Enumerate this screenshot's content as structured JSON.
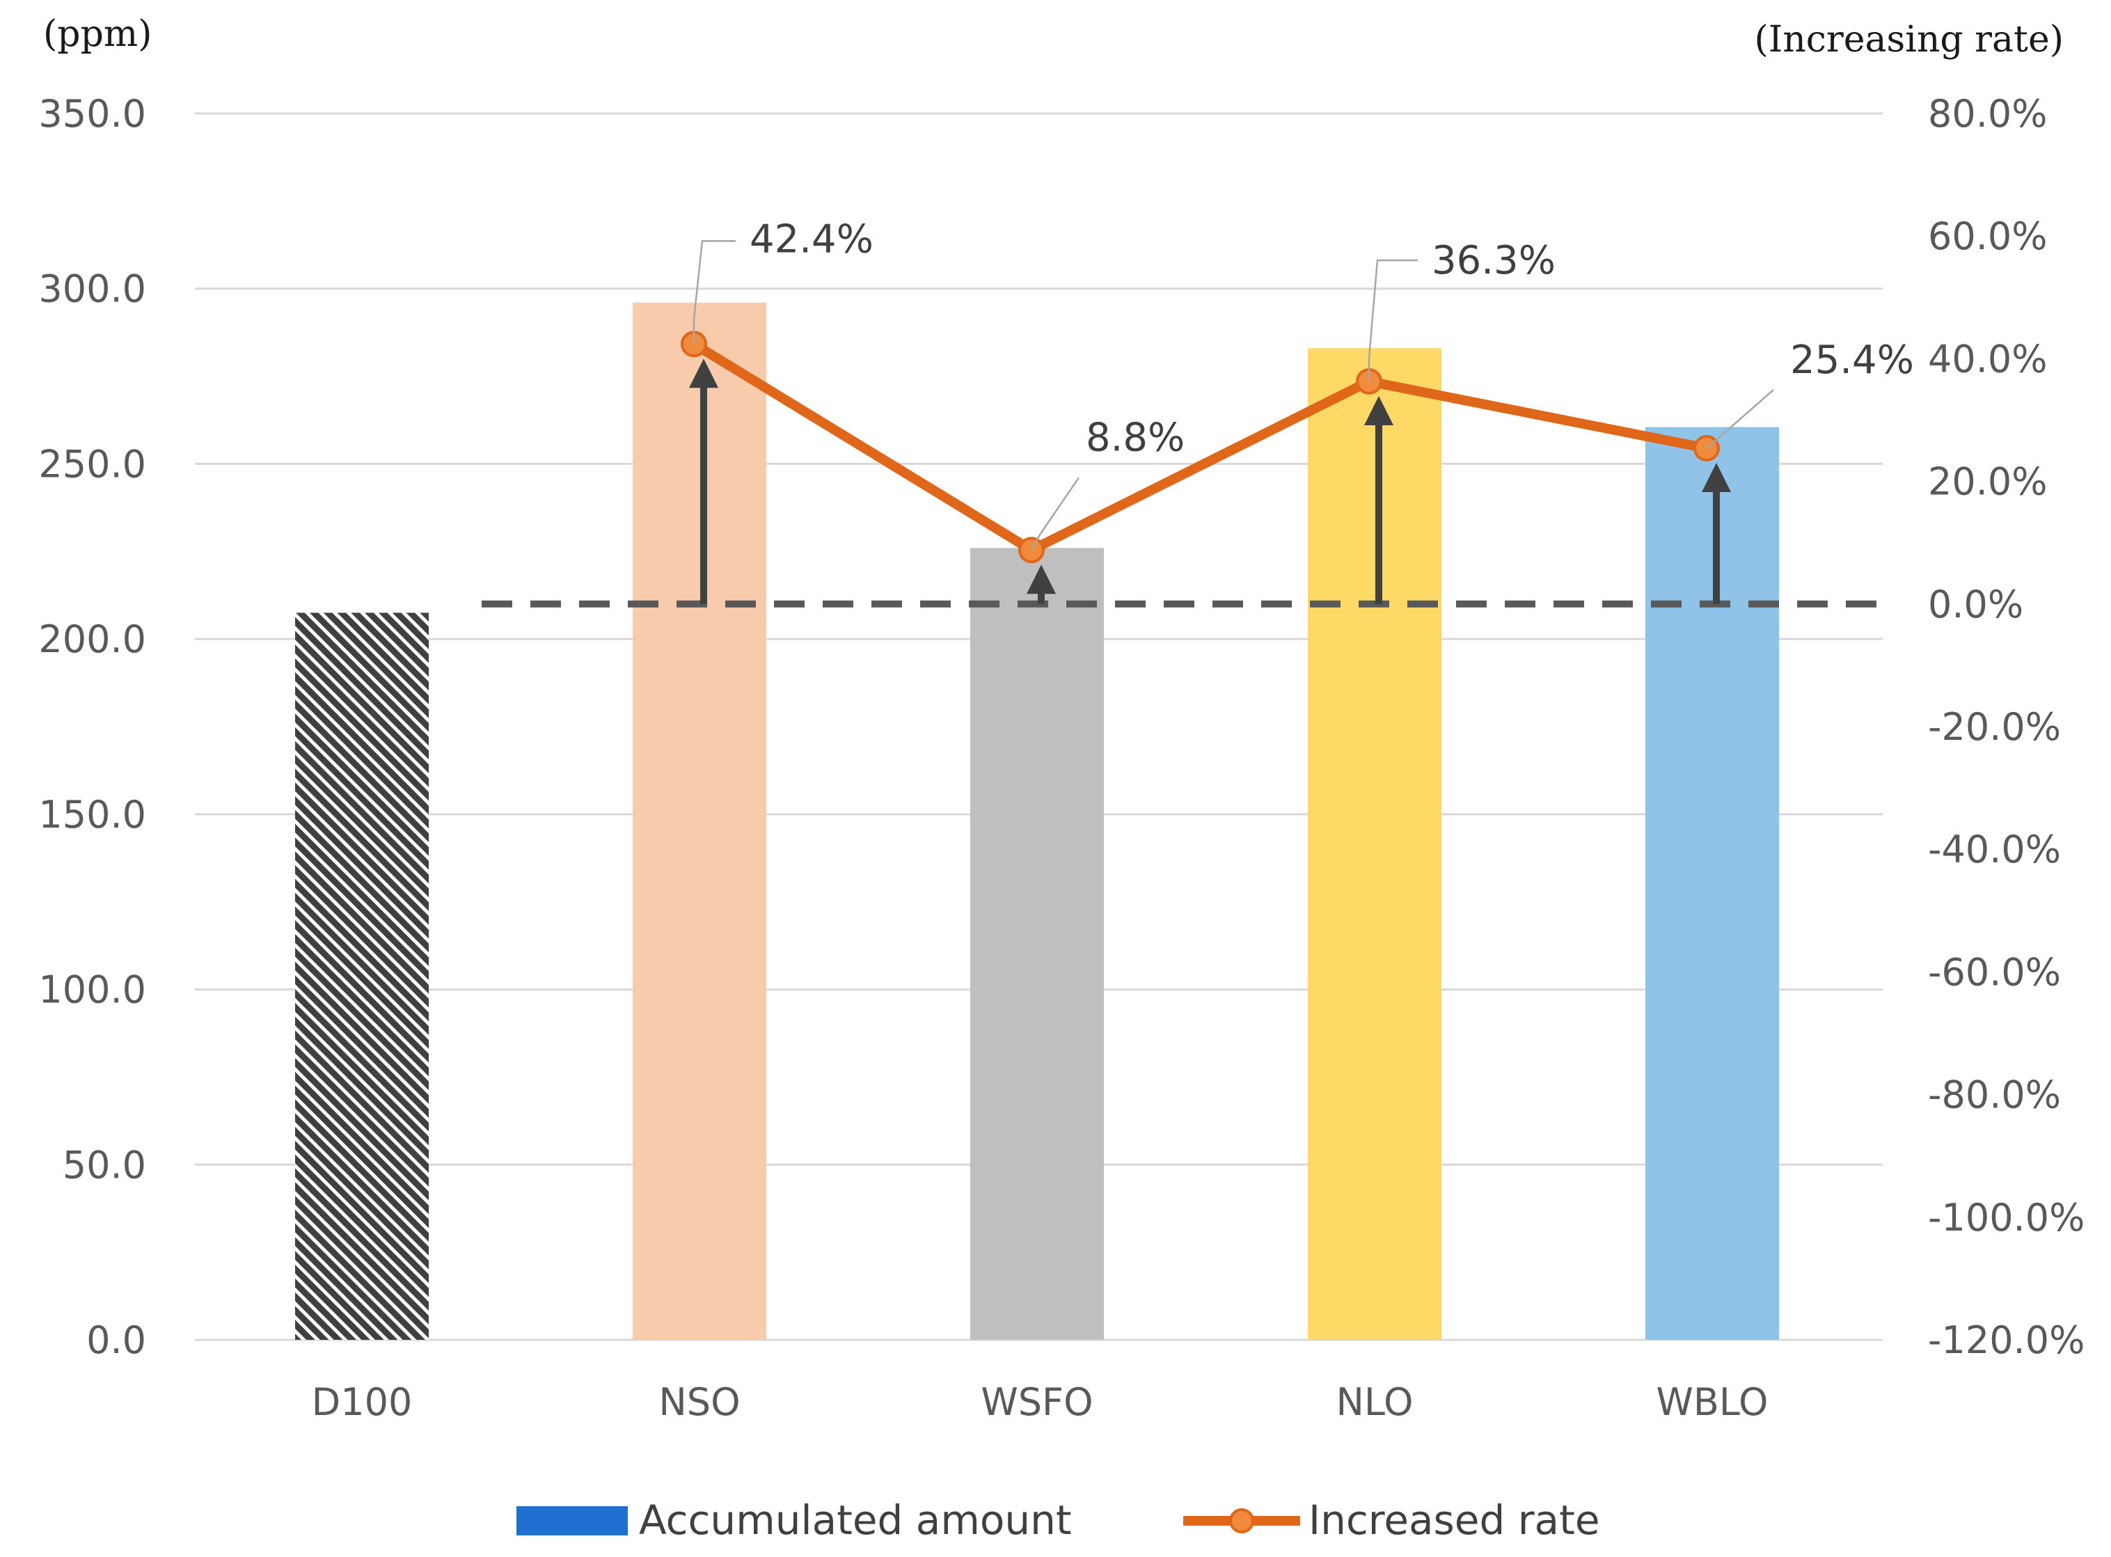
{
  "chart_data": {
    "type": "bar",
    "categories": [
      "D100",
      "NSO",
      "WSFO",
      "NLO",
      "WBLO"
    ],
    "series": [
      {
        "name": "Accumulated amount",
        "type": "bar",
        "axis": "left",
        "values": [
          207.5,
          296.0,
          226.0,
          283.0,
          260.5
        ],
        "colors": [
          "#404040",
          "#f8cbad",
          "#bfbfbf",
          "#ffd966",
          "#8fc3e8"
        ]
      },
      {
        "name": "Increased rate",
        "type": "line",
        "axis": "right",
        "values": [
          null,
          42.4,
          8.8,
          36.3,
          25.4
        ],
        "labels": [
          "",
          "42.4%",
          "8.8%",
          "36.3%",
          "25.4%"
        ],
        "color": "#e0661a"
      }
    ],
    "baseline_rate": 0.0,
    "y_left": {
      "label": "(ppm)",
      "min": 0,
      "max": 350,
      "ticks": [
        "0.0",
        "50.0",
        "100.0",
        "150.0",
        "200.0",
        "250.0",
        "300.0",
        "350.0"
      ]
    },
    "y_right": {
      "label": "(Increasing rate)",
      "min": -120,
      "max": 80,
      "ticks": [
        "-120.0%",
        "-100.0%",
        "-80.0%",
        "-60.0%",
        "-40.0%",
        "-20.0%",
        "0.0%",
        "20.0%",
        "40.0%",
        "60.0%",
        "80.0%"
      ]
    },
    "legend": {
      "position": "bottom",
      "items": [
        {
          "label": "Accumulated amount",
          "color": "#1f6fd1",
          "marker": "bar"
        },
        {
          "label": "Increased rate",
          "color": "#e0661a",
          "marker": "line"
        }
      ]
    },
    "grid": true
  }
}
